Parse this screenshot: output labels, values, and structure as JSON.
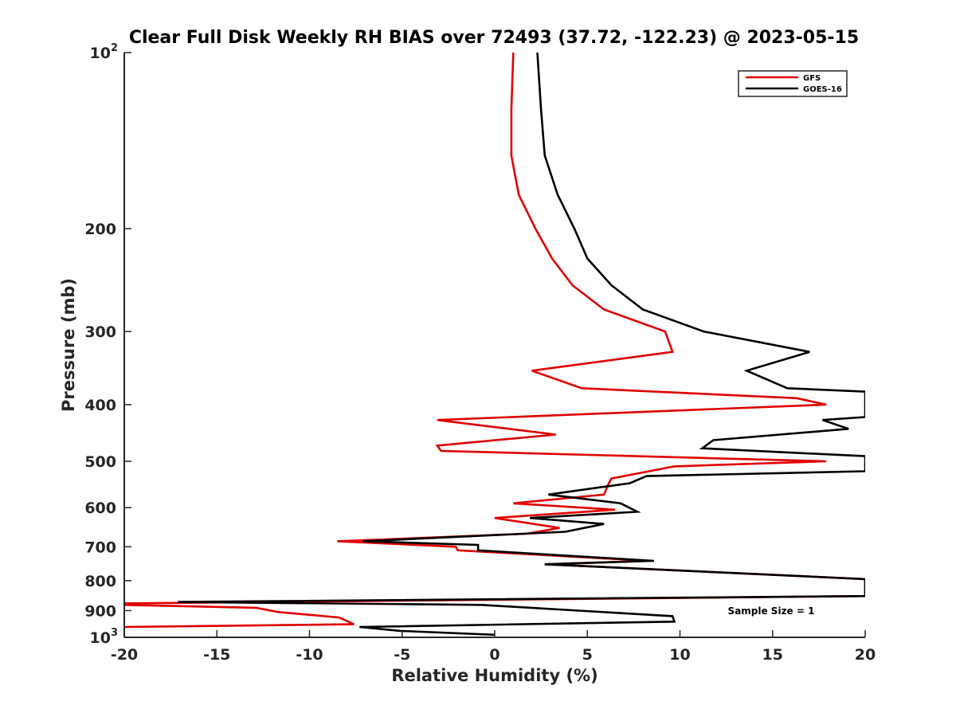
{
  "chart_data": {
    "type": "line",
    "title": "Clear Full Disk Weekly RH BIAS over 72493 (37.72, -122.23) @ 2023-05-15",
    "xlabel": "Relative Humidity (%)",
    "ylabel": "Pressure (mb)",
    "xlim": [
      -20,
      20
    ],
    "ylim": [
      100,
      1000
    ],
    "y_scale": "log",
    "y_reversed": true,
    "grid": false,
    "legend_position": "top-right",
    "x_ticks": [
      "-20",
      "-15",
      "-10",
      "-5",
      "0",
      "5",
      "10",
      "15",
      "20"
    ],
    "y_ticks": [
      {
        "value": 100,
        "base": "10",
        "exp": "2"
      },
      {
        "value": 200,
        "label": "200"
      },
      {
        "value": 300,
        "label": "300"
      },
      {
        "value": 400,
        "label": "400"
      },
      {
        "value": 500,
        "label": "500"
      },
      {
        "value": 600,
        "label": "600"
      },
      {
        "value": 700,
        "label": "700"
      },
      {
        "value": 800,
        "label": "800"
      },
      {
        "value": 900,
        "label": "900"
      },
      {
        "value": 1000,
        "base": "10",
        "exp": "3"
      }
    ],
    "annotation": "Sample Size = 1",
    "series": [
      {
        "name": "GFS",
        "color": "#e00000",
        "points": [
          [
            1.0,
            100
          ],
          [
            0.9,
            125
          ],
          [
            0.9,
            150
          ],
          [
            1.3,
            175
          ],
          [
            2.2,
            200
          ],
          [
            3.1,
            225
          ],
          [
            4.2,
            250
          ],
          [
            5.9,
            275
          ],
          [
            9.2,
            300
          ],
          [
            9.6,
            325
          ],
          [
            2.0,
            350
          ],
          [
            4.7,
            375
          ],
          [
            16.3,
            390
          ],
          [
            17.9,
            400
          ],
          [
            -3.1,
            425
          ],
          [
            3.3,
            450
          ],
          [
            -3.1,
            470
          ],
          [
            -2.9,
            480
          ],
          [
            17.9,
            500
          ],
          [
            9.7,
            510
          ],
          [
            6.3,
            535
          ],
          [
            6.1,
            550
          ],
          [
            5.9,
            570
          ],
          [
            1.0,
            590
          ],
          [
            6.5,
            605
          ],
          [
            0.0,
            625
          ],
          [
            3.5,
            650
          ],
          [
            1.7,
            665
          ],
          [
            -8.5,
            685
          ],
          [
            -2.1,
            700
          ],
          [
            -2.0,
            710
          ],
          [
            8.3,
            740
          ],
          [
            2.7,
            750
          ],
          [
            20,
            795
          ],
          [
            20,
            850
          ],
          [
            -20,
            875
          ],
          [
            -20,
            880
          ],
          [
            -12.9,
            890
          ],
          [
            -11.7,
            905
          ],
          [
            -8.4,
            925
          ],
          [
            -7.6,
            950
          ],
          [
            -20,
            960
          ]
        ]
      },
      {
        "name": "GOES-16",
        "color": "#000000",
        "points": [
          [
            2.3,
            100
          ],
          [
            2.5,
            125
          ],
          [
            2.7,
            150
          ],
          [
            3.4,
            175
          ],
          [
            4.3,
            200
          ],
          [
            5.0,
            225
          ],
          [
            6.3,
            250
          ],
          [
            8.0,
            275
          ],
          [
            11.3,
            300
          ],
          [
            17.0,
            325
          ],
          [
            13.6,
            350
          ],
          [
            15.8,
            375
          ],
          [
            20,
            380
          ],
          [
            20,
            420
          ],
          [
            17.7,
            425
          ],
          [
            19.1,
            440
          ],
          [
            11.8,
            460
          ],
          [
            11.2,
            475
          ],
          [
            20,
            490
          ],
          [
            20,
            520
          ],
          [
            8.2,
            530
          ],
          [
            7.3,
            545
          ],
          [
            2.9,
            570
          ],
          [
            6.8,
            590
          ],
          [
            7.7,
            610
          ],
          [
            1.9,
            625
          ],
          [
            5.9,
            640
          ],
          [
            3.8,
            660
          ],
          [
            -7.1,
            685
          ],
          [
            -0.9,
            695
          ],
          [
            -0.9,
            710
          ],
          [
            8.6,
            740
          ],
          [
            2.7,
            750
          ],
          [
            20,
            795
          ],
          [
            20,
            850
          ],
          [
            -17.1,
            870
          ],
          [
            -0.7,
            880
          ],
          [
            9.6,
            920
          ],
          [
            9.7,
            940
          ],
          [
            -7.3,
            960
          ],
          [
            -5.1,
            975
          ],
          [
            0.0,
            990
          ]
        ]
      }
    ]
  }
}
